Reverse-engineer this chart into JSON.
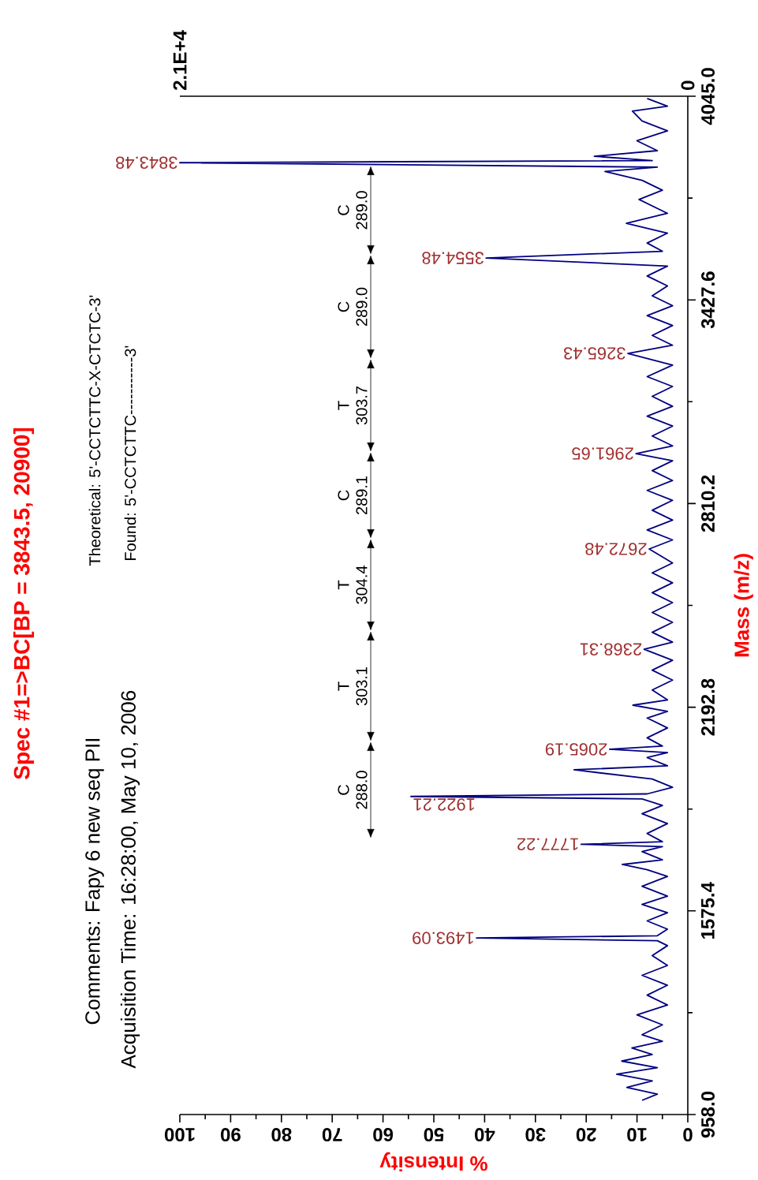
{
  "chart_data": {
    "type": "line",
    "title": "Spec #1=>BC[BP = 3843.5, 20900]",
    "xlabel": "% Intensity",
    "ylabel": "Mass (m/z)",
    "x": [
      9,
      6,
      12,
      7,
      14,
      6,
      13,
      7,
      11,
      5,
      9,
      5,
      10,
      4,
      8,
      4,
      9,
      4,
      7,
      4,
      6,
      41.6,
      6,
      4,
      8,
      4,
      9,
      4,
      9,
      4,
      8,
      12.9,
      5,
      9,
      5,
      21.0,
      5,
      8,
      4,
      9,
      5,
      9,
      54.5,
      8,
      3,
      7,
      22.4,
      4,
      8,
      4,
      15.4,
      5,
      8,
      4,
      8,
      4,
      10.8,
      4,
      7,
      3,
      7,
      3,
      8.6,
      3,
      7,
      3,
      7,
      3,
      7,
      3,
      7,
      3,
      7.6,
      3,
      8,
      3,
      7,
      3,
      8,
      3,
      7,
      3,
      10.2,
      3,
      7,
      3,
      8,
      3,
      7,
      3,
      8,
      3,
      11.8,
      3,
      7,
      3,
      8,
      3,
      7,
      4,
      8,
      4,
      39.7,
      5,
      8,
      4,
      12.1,
      4,
      9.6,
      5,
      9,
      16.3,
      6,
      100,
      7,
      18.4,
      6,
      10,
      4,
      9,
      10.9,
      4,
      8
    ],
    "series": [
      {
        "color": "#000080",
        "values": [
          1001,
          1020,
          1040,
          1060,
          1080,
          1100,
          1120,
          1140,
          1160,
          1180,
          1200,
          1230,
          1260,
          1290,
          1320,
          1350,
          1380,
          1410,
          1440,
          1470,
          1485,
          1493.09,
          1500,
          1520,
          1545,
          1570,
          1595,
          1620,
          1650,
          1680,
          1700,
          1716,
          1730,
          1755,
          1770,
          1777.22,
          1785,
          1810,
          1840,
          1870,
          1895,
          1915,
          1922.21,
          1930,
          1950,
          1975,
          2003,
          2015,
          2040,
          2055,
          2065.19,
          2075,
          2100,
          2130,
          2160,
          2180,
          2199,
          2215,
          2245,
          2275,
          2305,
          2335,
          2368.31,
          2390,
          2420,
          2450,
          2480,
          2510,
          2540,
          2570,
          2600,
          2630,
          2672.48,
          2700,
          2730,
          2760,
          2790,
          2820,
          2850,
          2880,
          2910,
          2940,
          2961.65,
          2985,
          3015,
          3045,
          3075,
          3105,
          3135,
          3165,
          3195,
          3230,
          3265.43,
          3290,
          3320,
          3350,
          3380,
          3410,
          3440,
          3470,
          3500,
          3530,
          3554.48,
          3575,
          3600,
          3630,
          3660,
          3690,
          3732,
          3760,
          3790,
          3817,
          3830,
          3843.48,
          3850,
          3863,
          3880,
          3910,
          3940,
          3970,
          4000,
          4015,
          4038
        ]
      }
    ],
    "xlim": [
      100,
      0
    ],
    "xticks": [
      {
        "value": 0,
        "label": "0"
      },
      {
        "value": 10,
        "label": "10"
      },
      {
        "value": 20,
        "label": "20"
      },
      {
        "value": 30,
        "label": "30"
      },
      {
        "value": 40,
        "label": "40"
      },
      {
        "value": 50,
        "label": "50"
      },
      {
        "value": 60,
        "label": "60"
      },
      {
        "value": 70,
        "label": "70"
      },
      {
        "value": 80,
        "label": "80"
      },
      {
        "value": 90,
        "label": "90"
      },
      {
        "value": 100,
        "label": "100"
      }
    ],
    "ylim": [
      958.0,
      4045.0
    ],
    "yticks": [
      {
        "value": 958.0,
        "label": "958.0"
      },
      {
        "value": 1575.4,
        "label": "1575.4"
      },
      {
        "value": 2192.8,
        "label": "2192.8"
      },
      {
        "value": 2810.2,
        "label": "2810.2"
      },
      {
        "value": 3427.6,
        "label": "3427.6"
      },
      {
        "value": 4045.0,
        "label": "4045.0"
      }
    ],
    "x2lim": [
      20900,
      0
    ],
    "x2ticks": [
      {
        "value": 0,
        "label": "0"
      },
      {
        "value": 20900,
        "label": "2.1E+4"
      }
    ],
    "annotations": [
      "Comments: Fapy 6 new seq PII",
      "Acquisition Time: 16:28:00, May 10, 2006",
      "Theoretical: 5'-CCTCTTC-X-CTCTC-3'",
      "Found: 5'-CCTCTTC-----------3'",
      {
        "text": "1493.09",
        "x": 41.6,
        "y": 1493.09
      },
      {
        "text": "1777.22",
        "x": 21.0,
        "y": 1777.22
      },
      {
        "text": "1922.21",
        "x": 54.5,
        "y": 1922.21
      },
      {
        "text": "2065.19",
        "x": 15.4,
        "y": 2065.19
      },
      {
        "text": "2368.31",
        "x": 8.6,
        "y": 2368.31
      },
      {
        "text": "2672.48",
        "x": 7.6,
        "y": 2672.48
      },
      {
        "text": "2961.65",
        "x": 10.2,
        "y": 2961.65
      },
      {
        "text": "3265.43",
        "x": 11.8,
        "y": 3265.43
      },
      {
        "text": "3554.48",
        "x": 39.7,
        "y": 3554.48
      },
      {
        "text": "3843.48",
        "x": 100,
        "y": 3843.48
      },
      "C 288.0",
      "T 303.1",
      "T 304.4",
      "C 289.1",
      "T 303.7",
      "C 289.0",
      "C 289.0"
    ]
  }
}
